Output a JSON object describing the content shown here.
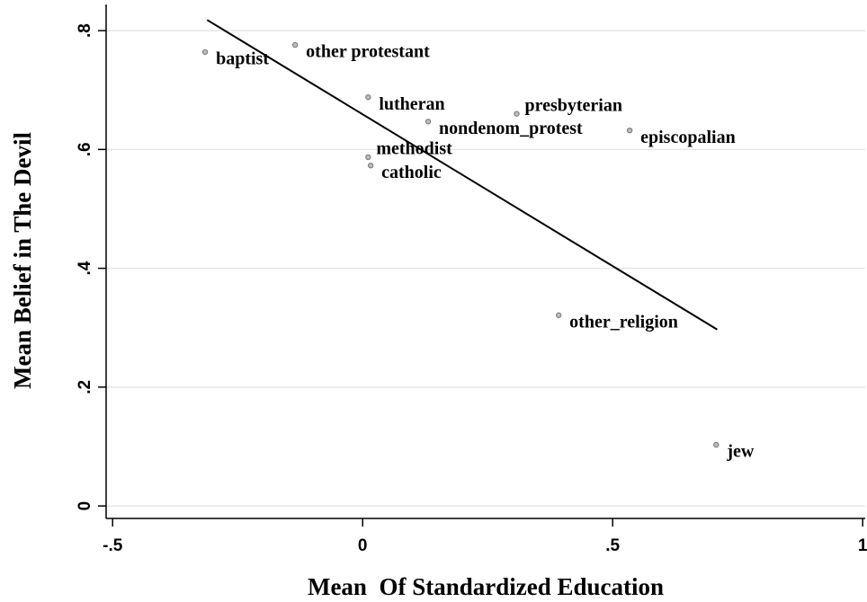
{
  "chart_data": {
    "type": "scatter",
    "x_label": "Mean  Of Standardized Education",
    "y_label": "Mean Belief in The Devil",
    "xlim": [
      -0.513,
      1.005
    ],
    "ylim": [
      -0.021,
      0.844
    ],
    "xticks": [
      {
        "value": -0.5,
        "label": "-.5"
      },
      0,
      {
        "value": 0.5,
        "label": ".5"
      },
      1
    ],
    "yticks": [
      0,
      {
        "value": 0.2,
        "label": ".2"
      },
      {
        "value": 0.4,
        "label": ".4"
      },
      {
        "value": 0.6,
        "label": ".6"
      },
      {
        "value": 0.8,
        "label": ".8"
      }
    ],
    "grid": true,
    "points": {
      "color": "#7f7f7f",
      "labels": [
        "baptist",
        "other protestant",
        "lutheran",
        "nondenom_protest",
        "presbyterian",
        "episcopalian",
        "methodist",
        "catholic",
        "other_religion",
        "jew"
      ],
      "x": [
        -0.315,
        -0.135,
        0.011,
        0.131,
        0.308,
        0.534,
        0.011,
        0.016,
        0.392,
        0.707
      ],
      "values": [
        0.764,
        0.776,
        0.688,
        0.647,
        0.66,
        0.632,
        0.587,
        0.573,
        0.321,
        0.103
      ]
    },
    "fit_line": {
      "color": "#000000",
      "x": [
        -0.311,
        0.709
      ],
      "values": [
        0.818,
        0.297
      ]
    }
  }
}
